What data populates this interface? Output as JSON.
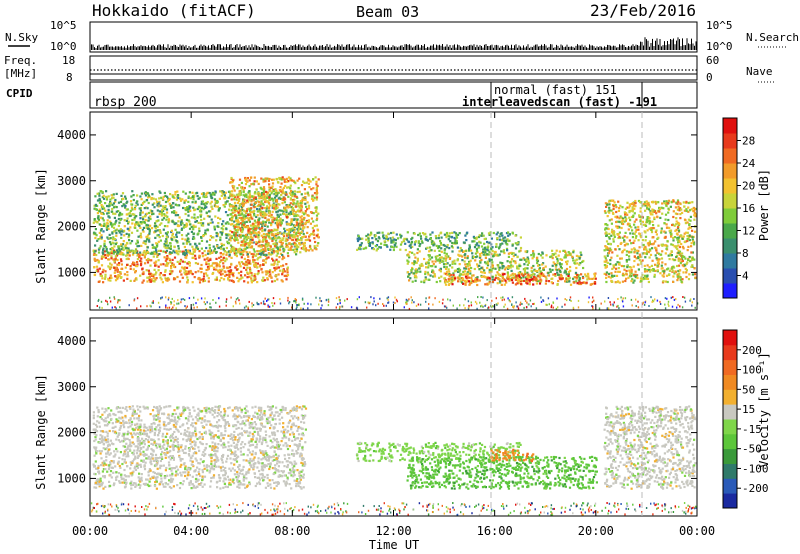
{
  "header": {
    "station": "Hokkaido (fitACF)",
    "beam": "Beam 03",
    "date": "23/Feb/2016"
  },
  "noise_panel": {
    "left_label": "N.Sky",
    "left_ticks": [
      "10^5",
      "10^0"
    ],
    "right_label": "N.Search",
    "right_ticks": [
      "10^5",
      "10^0"
    ]
  },
  "freq_panel": {
    "left_label_1": "Freq.",
    "left_label_2": "[MHz]",
    "left_ticks": [
      "18",
      "8"
    ],
    "right_label": "Nave",
    "right_ticks": [
      "60",
      "0"
    ]
  },
  "cpid_panel": {
    "label": "CPID",
    "modes": [
      {
        "name": "rbsp",
        "id": "200"
      },
      {
        "name": "normal (fast)",
        "id": "151"
      },
      {
        "name": "interleavedscan (fast)",
        "id": "-191"
      }
    ]
  },
  "x_axis": {
    "label": "Time UT",
    "ticks": [
      "00:00",
      "04:00",
      "08:00",
      "12:00",
      "16:00",
      "20:00",
      "00:00"
    ]
  },
  "chart_data": [
    {
      "type": "heatmap",
      "name": "power",
      "xlabel": "Time UT",
      "ylabel": "Slant Range [km]",
      "xlim": [
        0,
        24
      ],
      "ylim": [
        180,
        4500
      ],
      "y_ticks": [
        "1000",
        "2000",
        "3000",
        "4000"
      ],
      "colorbar": {
        "label": "Power [dB]",
        "ticks": [
          "28",
          "24",
          "20",
          "16",
          "12",
          "8",
          "4"
        ],
        "colors": [
          "#1f1fff",
          "#2a4fb0",
          "#2f7aa0",
          "#3a8f6e",
          "#4aa84a",
          "#7fcc3a",
          "#c8d43a",
          "#f2c230",
          "#f29b2a",
          "#f06a22",
          "#e83a1c",
          "#e0100e"
        ]
      },
      "regions": [
        {
          "t0": 0.1,
          "t1": 7.8,
          "r0": 800,
          "r1": 1500,
          "value": 20
        },
        {
          "t0": 0.1,
          "t1": 8.5,
          "r0": 1400,
          "r1": 2800,
          "value": 12
        },
        {
          "t0": 5.5,
          "t1": 9.0,
          "r0": 1500,
          "r1": 3100,
          "value": 18
        },
        {
          "t0": 10.5,
          "t1": 17.0,
          "r0": 1500,
          "r1": 1900,
          "value": 10
        },
        {
          "t0": 12.5,
          "t1": 19.5,
          "r0": 800,
          "r1": 1500,
          "value": 14
        },
        {
          "t0": 14.0,
          "t1": 20.0,
          "r0": 750,
          "r1": 1000,
          "value": 22
        },
        {
          "t0": 20.3,
          "t1": 23.9,
          "r0": 800,
          "r1": 2600,
          "value": 16
        }
      ]
    },
    {
      "type": "heatmap",
      "name": "velocity",
      "xlabel": "Time UT",
      "ylabel": "Slant Range [km]",
      "xlim": [
        0,
        24
      ],
      "ylim": [
        180,
        4500
      ],
      "y_ticks": [
        "1000",
        "2000",
        "3000",
        "4000"
      ],
      "colorbar": {
        "label": "Velocity [m s⁻¹]",
        "ticks": [
          "200",
          "100",
          "50",
          "15",
          "-15",
          "-50",
          "-100",
          "-200"
        ],
        "colors": [
          "#1a2aa0",
          "#2a5ab8",
          "#2f7a6a",
          "#3a9a3a",
          "#5cc63a",
          "#7fd64a",
          "#c8c8c0",
          "#f2b030",
          "#f08a22",
          "#f06a22",
          "#e83a1c",
          "#e0100e"
        ]
      },
      "regions": [
        {
          "t0": 0.1,
          "t1": 8.5,
          "r0": 800,
          "r1": 2600,
          "value": 0
        },
        {
          "t0": 10.5,
          "t1": 17.0,
          "r0": 1400,
          "r1": 1800,
          "value": 30
        },
        {
          "t0": 12.5,
          "t1": 20.0,
          "r0": 800,
          "r1": 1500,
          "value": 40
        },
        {
          "t0": 15.8,
          "t1": 17.5,
          "r0": 1400,
          "r1": 1650,
          "value": -60
        },
        {
          "t0": 20.3,
          "t1": 23.9,
          "r0": 800,
          "r1": 2600,
          "value": 0
        }
      ]
    }
  ]
}
